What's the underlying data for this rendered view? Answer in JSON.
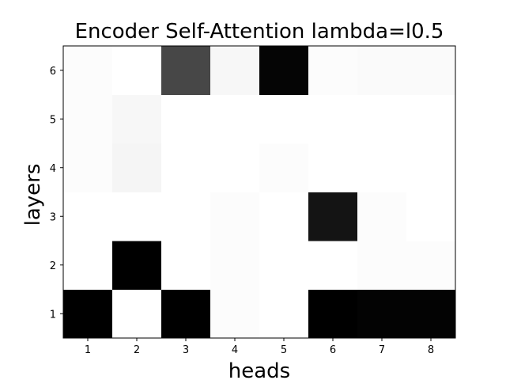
{
  "chart_data": {
    "type": "heatmap",
    "title": "Encoder Self-Attention lambda=l0.5",
    "xlabel": "heads",
    "ylabel": "layers",
    "x_categories": [
      "1",
      "2",
      "3",
      "4",
      "5",
      "6",
      "7",
      "8"
    ],
    "y_categories": [
      "1",
      "2",
      "3",
      "4",
      "5",
      "6"
    ],
    "colormap": "Greys",
    "value_range": [
      0,
      1
    ],
    "grid": false,
    "values": [
      [
        1.0,
        0.0,
        1.0,
        0.01,
        0.0,
        1.0,
        0.99,
        0.99
      ],
      [
        0.0,
        1.0,
        0.0,
        0.01,
        0.0,
        0.0,
        0.01,
        0.01
      ],
      [
        0.0,
        0.0,
        0.0,
        0.01,
        0.0,
        0.92,
        0.01,
        0.0
      ],
      [
        0.01,
        0.04,
        0.0,
        0.0,
        0.01,
        0.0,
        0.0,
        0.0
      ],
      [
        0.01,
        0.03,
        0.0,
        0.0,
        0.0,
        0.0,
        0.0,
        0.0
      ],
      [
        0.01,
        0.0,
        0.72,
        0.03,
        0.98,
        0.01,
        0.02,
        0.02
      ]
    ]
  }
}
